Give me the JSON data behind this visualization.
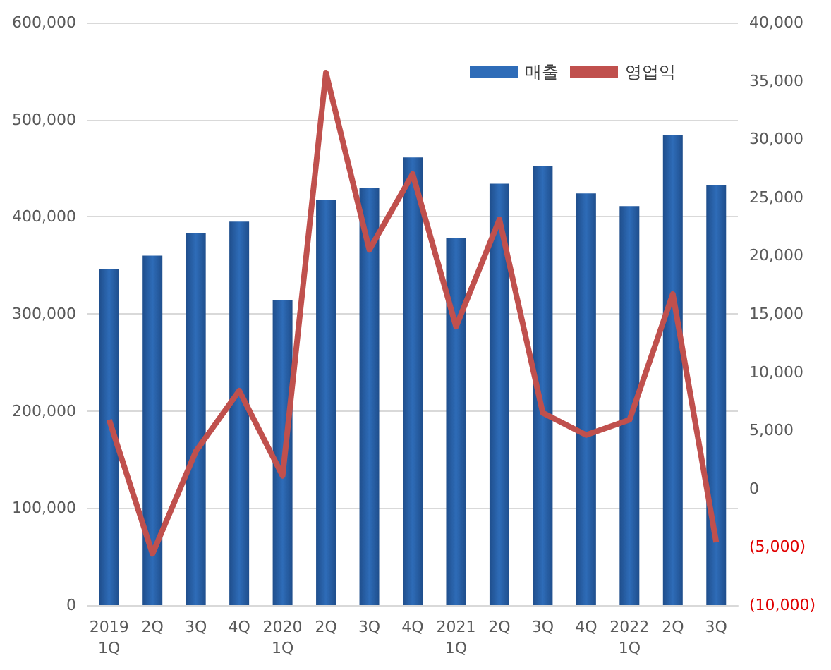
{
  "chart_data": {
    "type": "bar",
    "categories": [
      "2019\n1Q",
      "2Q",
      "3Q",
      "4Q",
      "2020\n1Q",
      "2Q",
      "3Q",
      "4Q",
      "2021\n1Q",
      "2Q",
      "3Q",
      "4Q",
      "2022\n1Q",
      "2Q",
      "3Q"
    ],
    "series": [
      {
        "name": "매출",
        "color": "#2e6cb8",
        "values": [
          346000,
          360000,
          383000,
          395000,
          314000,
          417000,
          430000,
          461000,
          378000,
          434000,
          452000,
          424000,
          411000,
          484000,
          433000
        ]
      },
      {
        "name": "영업익",
        "type": "line",
        "axis": "y2",
        "color": "#c0504d",
        "values": [
          5900,
          -5600,
          3200,
          8400,
          1100,
          35700,
          20500,
          27000,
          13900,
          23100,
          6500,
          4600,
          5900,
          16700,
          -4600
        ]
      }
    ],
    "ylim": [
      0,
      600000
    ],
    "yticks": [
      {
        "value": 0,
        "label": "0"
      },
      {
        "value": 100000,
        "label": "100,000"
      },
      {
        "value": 200000,
        "label": "200,000"
      },
      {
        "value": 300000,
        "label": "300,000"
      },
      {
        "value": 400000,
        "label": "400,000"
      },
      {
        "value": 500000,
        "label": "500,000"
      },
      {
        "value": 600000,
        "label": "600,000"
      }
    ],
    "y2lim": [
      -10000,
      40000
    ],
    "y2ticks": [
      {
        "value": -10000,
        "label": "(10,000)"
      },
      {
        "value": -5000,
        "label": "(5,000)"
      },
      {
        "value": 0,
        "label": "0"
      },
      {
        "value": 5000,
        "label": "5,000"
      },
      {
        "value": 10000,
        "label": "10,000"
      },
      {
        "value": 15000,
        "label": "15,000"
      },
      {
        "value": 20000,
        "label": "20,000"
      },
      {
        "value": 25000,
        "label": "25,000"
      },
      {
        "value": 30000,
        "label": "30,000"
      },
      {
        "value": 35000,
        "label": "35,000"
      },
      {
        "value": 40000,
        "label": "40,000"
      }
    ],
    "grid": "y",
    "legend": "top right",
    "marker": "none"
  }
}
